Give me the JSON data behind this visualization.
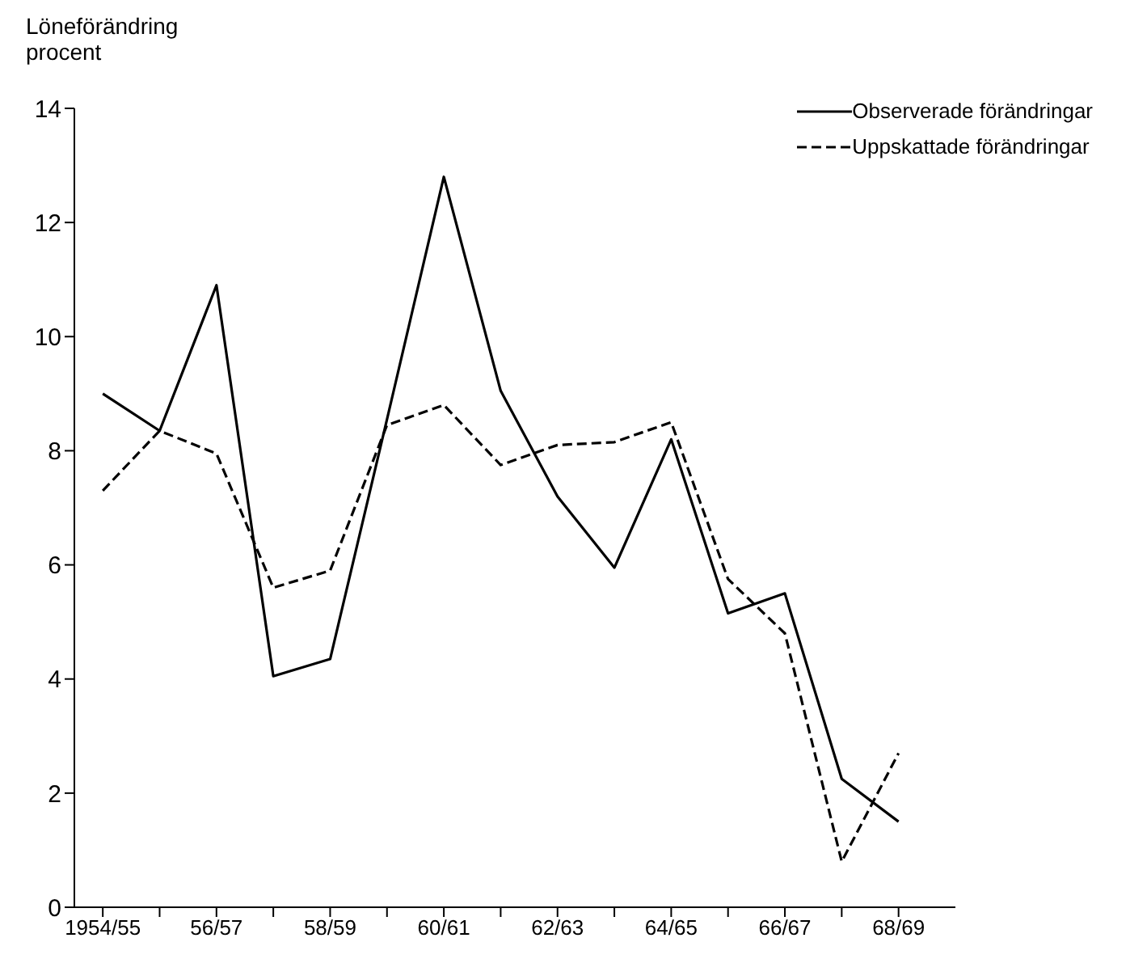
{
  "chart_data": {
    "type": "line",
    "ylabel": "Löneförändring procent",
    "categories": [
      "1954/55",
      null,
      "56/57",
      null,
      "58/59",
      null,
      "60/61",
      null,
      "62/63",
      null,
      "64/65",
      null,
      "66/67",
      null,
      "68/69"
    ],
    "series": [
      {
        "name": "Observerade förändringar",
        "color": "#000000",
        "line_style": "solid",
        "values": [
          9.0,
          8.35,
          10.9,
          4.05,
          4.35,
          8.55,
          12.8,
          9.05,
          7.2,
          5.95,
          8.2,
          5.15,
          5.5,
          2.25,
          1.5
        ]
      },
      {
        "name": "Uppskattade förändringar",
        "color": "#000000",
        "line_style": "dashed",
        "values": [
          7.3,
          8.35,
          7.95,
          5.6,
          5.9,
          8.45,
          8.8,
          7.75,
          8.1,
          8.15,
          8.5,
          5.75,
          4.8,
          0.8,
          2.7
        ]
      }
    ],
    "ylim": [
      0,
      14
    ],
    "yticks": [
      0,
      2,
      4,
      6,
      8,
      10,
      12,
      14
    ],
    "grid": false,
    "legend": "top right",
    "marker": "none"
  }
}
